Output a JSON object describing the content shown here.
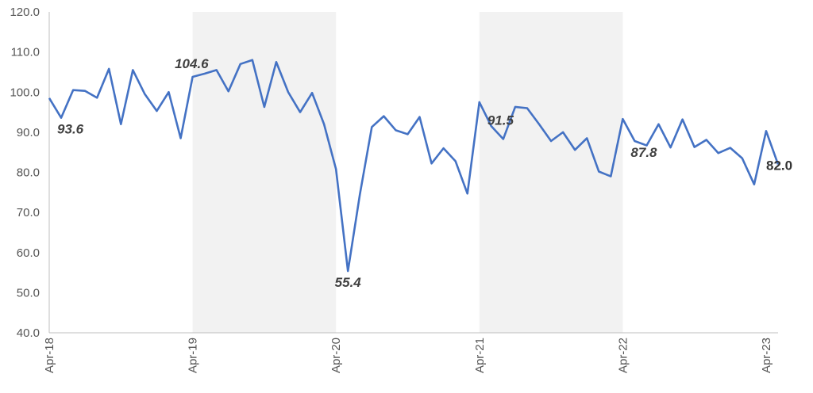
{
  "chart_data": {
    "type": "line",
    "title": "",
    "xlabel": "",
    "ylabel": "",
    "ylim": [
      40,
      120
    ],
    "y_ticks": [
      "40.0",
      "50.0",
      "60.0",
      "70.0",
      "80.0",
      "90.0",
      "100.0",
      "110.0",
      "120.0"
    ],
    "x_tick_labels": [
      "Apr-18",
      "Apr-19",
      "Apr-20",
      "Apr-21",
      "Apr-22",
      "Apr-23"
    ],
    "x_tick_index": [
      0,
      12,
      24,
      36,
      48,
      60
    ],
    "shaded_ranges": [
      [
        12,
        24
      ],
      [
        36,
        48
      ]
    ],
    "grid": false,
    "legend": "none",
    "colors": {
      "line": "#4472C4",
      "shade": "#F2F2F2",
      "axis": "#BFBFBF",
      "annotation": "#404040"
    },
    "series": [
      {
        "values": [
          98.5,
          93.6,
          100.5,
          100.3,
          98.6,
          105.8,
          92.0,
          105.5,
          99.5,
          95.3,
          100.0,
          88.5,
          103.8,
          104.6,
          105.5,
          100.2,
          107.0,
          108.0,
          96.3,
          107.5,
          100.0,
          95.0,
          99.8,
          92.0,
          80.8,
          55.4,
          74.5,
          91.3,
          94.0,
          90.5,
          89.5,
          93.8,
          82.2,
          86.0,
          82.8,
          74.7,
          97.5,
          91.5,
          88.3,
          96.3,
          96.0,
          92.0,
          87.8,
          90.0,
          85.6,
          88.5,
          80.2,
          79.0,
          93.3,
          87.8,
          86.7,
          92.0,
          86.2,
          93.2,
          86.3,
          88.1,
          84.8,
          86.1,
          83.5,
          77.0,
          90.3,
          82.0
        ]
      }
    ],
    "annotations": [
      {
        "text": "93.6",
        "index": 1
      },
      {
        "text": "104.6",
        "index": 13
      },
      {
        "text": "55.4",
        "index": 25
      },
      {
        "text": "91.5",
        "index": 37
      },
      {
        "text": "87.8",
        "index": 49
      },
      {
        "text": "82.0",
        "index": 61
      }
    ]
  }
}
